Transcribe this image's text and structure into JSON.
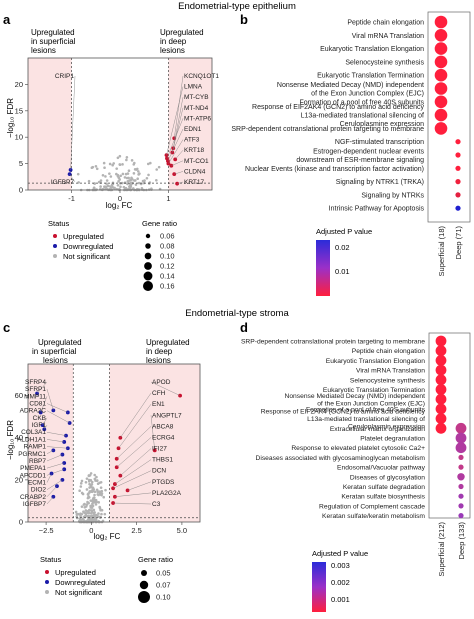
{
  "section_titles": {
    "epithelium": "Endometrial-type epithelium",
    "stroma": "Endometrial-type stroma"
  },
  "panel_letters": [
    "a",
    "b",
    "c",
    "d"
  ],
  "colors": {
    "up": "#c8102e",
    "down": "#1a1aa8",
    "ns": "#b3b3b3",
    "shade": "#fbe3e3",
    "grad_top": "#2b2bd9",
    "grad_mid": "#9b30c8",
    "grad_bottom": "#ff1f3d"
  },
  "chart_data": [
    {
      "panel": "a",
      "type": "scatter",
      "xlabel": "log₂ FC",
      "ylabel": "−log₁₀ FDR",
      "xlim": [
        -1.9,
        1.9
      ],
      "ylim": [
        0,
        25
      ],
      "xticks": [
        -1,
        0,
        1
      ],
      "yticks": [
        0,
        5,
        10,
        15,
        20
      ],
      "region_labels": {
        "left": [
          "Upregulated",
          "in superficial",
          "lesions"
        ],
        "right": [
          "Upregulated",
          "in deep",
          "lesions"
        ]
      },
      "upregulated_points": [
        {
          "label": "KCNQ1OT1",
          "x": 1.12,
          "y": 9.8
        },
        {
          "label": "LMNA",
          "x": 0.96,
          "y": 6.6
        },
        {
          "label": "MT-CYB",
          "x": 1.1,
          "y": 7.9
        },
        {
          "label": "MT-ND4",
          "x": 1.08,
          "y": 7.1
        },
        {
          "label": "MT-ATP6",
          "x": 0.97,
          "y": 6.0
        },
        {
          "label": "EDN1",
          "x": 0.99,
          "y": 5.5
        },
        {
          "label": "ATF3",
          "x": 1.0,
          "y": 5.0
        },
        {
          "label": "KRT18",
          "x": 1.14,
          "y": 5.8
        },
        {
          "label": "MT-CO1",
          "x": 1.06,
          "y": 4.6
        },
        {
          "label": "CLDN4",
          "x": 1.12,
          "y": 3.0
        },
        {
          "label": "KRT17",
          "x": 1.18,
          "y": 1.2
        }
      ],
      "downregulated_points": [
        {
          "label": "CRIP1",
          "x": -1.02,
          "y": 3.8
        },
        {
          "label": "IGFBP7",
          "x": -1.04,
          "y": 3.0
        }
      ],
      "legend": {
        "status_title": "Status",
        "status_items": [
          "Upregulated",
          "Downregulated",
          "Not significant"
        ],
        "ratio_title": "Gene ratio",
        "ratio_values": [
          "0.06",
          "0.08",
          "0.10",
          "0.12",
          "0.14",
          "0.16"
        ]
      }
    },
    {
      "panel": "b",
      "type": "scatter",
      "columns": [
        "Superficial (18)",
        "Deep (71)"
      ],
      "colorbar_title": "Adjusted P value",
      "colorbar_ticks": [
        "0.02",
        "0.01"
      ],
      "pathways": [
        {
          "label": [
            "Peptide chain elongation"
          ],
          "superficial": {
            "ratio": 0.16,
            "color": "#ff1f3d"
          },
          "deep": null
        },
        {
          "label": [
            "Viral mRNA Translation"
          ],
          "superficial": {
            "ratio": 0.16,
            "color": "#ff1f3d"
          },
          "deep": null
        },
        {
          "label": [
            "Eukaryotic Translation Elongation"
          ],
          "superficial": {
            "ratio": 0.16,
            "color": "#ff1f3d"
          },
          "deep": null
        },
        {
          "label": [
            "Selenocysteine synthesis"
          ],
          "superficial": {
            "ratio": 0.16,
            "color": "#ff1f3d"
          },
          "deep": null
        },
        {
          "label": [
            "Eukaryotic Translation Termination"
          ],
          "superficial": {
            "ratio": 0.16,
            "color": "#ff1f3d"
          },
          "deep": null
        },
        {
          "label": [
            "Nonsense Mediated Decay (NMD) independent",
            "of the Exon Junction Complex (EJC)"
          ],
          "superficial": {
            "ratio": 0.16,
            "color": "#ff1f3d"
          },
          "deep": null
        },
        {
          "label": [
            "Formation of a pool of free 40S subunits"
          ],
          "superficial": {
            "ratio": 0.16,
            "color": "#ff1f3d"
          },
          "deep": null
        },
        {
          "label": [
            "Response of EIF2AK4 (GCN2) to amino acid deficiency",
            "L13a-mediated translational silencing of",
            "Ceruloplasmine expression"
          ],
          "superficial": {
            "ratio": 0.16,
            "color": "#ff1f3d"
          },
          "deep": null
        },
        {
          "label": [
            "SRP-dependent cotranslational protein targeting to membrane"
          ],
          "superficial": {
            "ratio": 0.16,
            "color": "#ff1f3d"
          },
          "deep": null
        },
        {
          "label": [
            "NGF-stimulated transcription"
          ],
          "superficial": null,
          "deep": {
            "ratio": 0.06,
            "color": "#ff1f3d"
          }
        },
        {
          "label": [
            "Estrogen-dependent nuclear events",
            "downstream of ESR-membrane signaling"
          ],
          "superficial": null,
          "deep": {
            "ratio": 0.06,
            "color": "#ff1f3d"
          }
        },
        {
          "label": [
            "Nuclear Events (kinase and transcription factor activation)"
          ],
          "superficial": null,
          "deep": {
            "ratio": 0.06,
            "color": "#ff1f3d"
          }
        },
        {
          "label": [
            "Signaling by NTRK1 (TRKA)"
          ],
          "superficial": null,
          "deep": {
            "ratio": 0.06,
            "color": "#f0203c"
          }
        },
        {
          "label": [
            "Signaling by NTRKs"
          ],
          "superficial": null,
          "deep": {
            "ratio": 0.06,
            "color": "#e42040"
          }
        },
        {
          "label": [
            "Intrinsic Pathway for Apoptosis"
          ],
          "superficial": null,
          "deep": {
            "ratio": 0.06,
            "color": "#2020d0"
          }
        }
      ]
    },
    {
      "panel": "c",
      "type": "scatter",
      "xlabel": "log₂ FC",
      "ylabel": "−log₁₀ FDR",
      "xlim": [
        -3.5,
        6.0
      ],
      "ylim": [
        0,
        75
      ],
      "xticks": [
        -2.5,
        0,
        2.5,
        5.0
      ],
      "xtick_labels": [
        "−2.5",
        "0",
        "2.5",
        "5.0"
      ],
      "yticks": [
        0,
        20,
        40,
        60
      ],
      "region_labels": {
        "left": [
          "Upregulated",
          "in superficial",
          "lesions"
        ],
        "right": [
          "Upregulated",
          "in deep",
          "lesions"
        ]
      },
      "upregulated_points": [
        {
          "label": "APOD",
          "x": 4.9,
          "y": 60
        },
        {
          "label": "CFH",
          "x": 1.6,
          "y": 40
        },
        {
          "label": "EN1",
          "x": 1.5,
          "y": 35
        },
        {
          "label": "ANGPTL7",
          "x": 3.5,
          "y": 34
        },
        {
          "label": "ABCA8",
          "x": 1.4,
          "y": 30
        },
        {
          "label": "ECRG4",
          "x": 1.4,
          "y": 26
        },
        {
          "label": "IFI27",
          "x": 1.6,
          "y": 22
        },
        {
          "label": "THBS1",
          "x": 1.3,
          "y": 18
        },
        {
          "label": "DCN",
          "x": 1.2,
          "y": 16
        },
        {
          "label": "PTGDS",
          "x": 2.0,
          "y": 15
        },
        {
          "label": "PLA2G2A",
          "x": 1.3,
          "y": 12
        },
        {
          "label": "C3",
          "x": 1.2,
          "y": 9
        }
      ],
      "downregulated_points": [
        {
          "label": "SFRP4",
          "x": -3.0,
          "y": 61
        },
        {
          "label": "SFRP1",
          "x": -2.1,
          "y": 53
        },
        {
          "label": "MMP11",
          "x": -2.8,
          "y": 52
        },
        {
          "label": "CD81",
          "x": -1.3,
          "y": 52
        },
        {
          "label": "ADRA2C",
          "x": -1.2,
          "y": 47
        },
        {
          "label": "CKB",
          "x": -2.7,
          "y": 46
        },
        {
          "label": "IGF1",
          "x": -2.6,
          "y": 44
        },
        {
          "label": "COL3A1",
          "x": -1.4,
          "y": 41
        },
        {
          "label": "ALDH1A1",
          "x": -1.5,
          "y": 38
        },
        {
          "label": "RAMP1",
          "x": -1.3,
          "y": 35
        },
        {
          "label": "PGRMC1",
          "x": -2.1,
          "y": 34
        },
        {
          "label": "RBP7",
          "x": -1.6,
          "y": 32
        },
        {
          "label": "PMEPA1",
          "x": -1.5,
          "y": 28
        },
        {
          "label": "APCDD1",
          "x": -1.5,
          "y": 25
        },
        {
          "label": "ECM1",
          "x": -2.2,
          "y": 23
        },
        {
          "label": "DIO2",
          "x": -1.6,
          "y": 20
        },
        {
          "label": "CRABP2",
          "x": -1.9,
          "y": 17
        },
        {
          "label": "IGFBP7",
          "x": -2.1,
          "y": 12
        }
      ],
      "legend": {
        "status_title": "Status",
        "status_items": [
          "Upregulated",
          "Downregulated",
          "Not significant"
        ],
        "ratio_title": "Gene ratio",
        "ratio_values": [
          "0.05",
          "0.07",
          "0.10"
        ]
      }
    },
    {
      "panel": "d",
      "type": "scatter",
      "columns": [
        "Superficial (212)",
        "Deep (133)"
      ],
      "colorbar_title": "Adjusted P value",
      "colorbar_ticks": [
        "0.003",
        "0.002",
        "0.001"
      ],
      "pathways": [
        {
          "label": [
            "SRP-dependent cotranslational protein targeting to membrane"
          ],
          "superficial": {
            "ratio": 0.1,
            "color": "#ff1f3d"
          },
          "deep": null
        },
        {
          "label": [
            "Peptide chain elongation"
          ],
          "superficial": {
            "ratio": 0.1,
            "color": "#ff1f3d"
          },
          "deep": null
        },
        {
          "label": [
            "Eukaryotic Translation Elongation"
          ],
          "superficial": {
            "ratio": 0.1,
            "color": "#ff1f3d"
          },
          "deep": null
        },
        {
          "label": [
            "Viral mRNA Translation"
          ],
          "superficial": {
            "ratio": 0.1,
            "color": "#ff1f3d"
          },
          "deep": null
        },
        {
          "label": [
            "Selenocysteine synthesis"
          ],
          "superficial": {
            "ratio": 0.1,
            "color": "#ff1f3d"
          },
          "deep": null
        },
        {
          "label": [
            "Eukaryotic Translation Termination"
          ],
          "superficial": {
            "ratio": 0.1,
            "color": "#ff1f3d"
          },
          "deep": null
        },
        {
          "label": [
            "Nonsense Mediated Decay (NMD) independent",
            "of the Exon Junction Complex (EJC)"
          ],
          "superficial": {
            "ratio": 0.1,
            "color": "#ff1f3d"
          },
          "deep": null
        },
        {
          "label": [
            "Formation of a pool of free 40S subunits"
          ],
          "superficial": {
            "ratio": 0.1,
            "color": "#ff1f3d"
          },
          "deep": null
        },
        {
          "label": [
            "Response of EIF2AK4 (GCN2) to amino acid deficiency",
            "L13a-mediated translational silencing of",
            "Ceruloplasmin expression"
          ],
          "superficial": {
            "ratio": 0.1,
            "color": "#ff1f3d"
          },
          "deep": null
        },
        {
          "label": [
            "Extracellular matrix organization"
          ],
          "superficial": {
            "ratio": 0.1,
            "color": "#ff1f3d"
          },
          "deep": {
            "ratio": 0.1,
            "color": "#c23a8a"
          }
        },
        {
          "label": [
            "Platelet degranulation"
          ],
          "superficial": null,
          "deep": {
            "ratio": 0.1,
            "color": "#b03aa0"
          }
        },
        {
          "label": [
            "Response to elevated platelet cytosolic Ca2+"
          ],
          "superficial": null,
          "deep": {
            "ratio": 0.1,
            "color": "#b03aa0"
          }
        },
        {
          "label": [
            "Diseases associated with glycosaminoglycan metabolism"
          ],
          "superficial": null,
          "deep": {
            "ratio": 0.05,
            "color": "#c23a8a"
          }
        },
        {
          "label": [
            "Endosomal/Vacuolar pathway"
          ],
          "superficial": null,
          "deep": {
            "ratio": 0.05,
            "color": "#c23a8a"
          }
        },
        {
          "label": [
            "Diseases of glycosylation"
          ],
          "superficial": null,
          "deep": {
            "ratio": 0.07,
            "color": "#b03aa0"
          }
        },
        {
          "label": [
            "Keratan sulfate degradation"
          ],
          "superficial": null,
          "deep": {
            "ratio": 0.05,
            "color": "#b03aa0"
          }
        },
        {
          "label": [
            "Keratan sulfate biosynthesis"
          ],
          "superficial": null,
          "deep": {
            "ratio": 0.05,
            "color": "#a03ab0"
          }
        },
        {
          "label": [
            "Regulation of Complement cascade"
          ],
          "superficial": null,
          "deep": {
            "ratio": 0.05,
            "color": "#a03ab0"
          }
        },
        {
          "label": [
            "Keratan sulfate/keratin metabolism"
          ],
          "superficial": null,
          "deep": {
            "ratio": 0.05,
            "color": "#9a3ab8"
          }
        }
      ]
    }
  ]
}
